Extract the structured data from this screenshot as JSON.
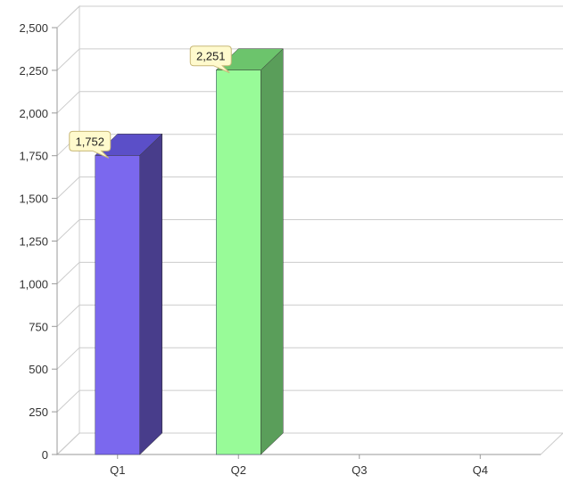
{
  "chart_data": {
    "type": "bar",
    "style": "3d",
    "title": "",
    "xlabel": "",
    "ylabel": "",
    "categories": [
      "Q1",
      "Q2",
      "Q3",
      "Q4"
    ],
    "values": [
      1752,
      2251,
      null,
      null
    ],
    "data_labels": [
      "1,752",
      "2,251",
      "",
      ""
    ],
    "ylim": [
      0,
      2500
    ],
    "yticks": [
      0,
      250,
      500,
      750,
      1000,
      1250,
      1500,
      1750,
      2000,
      2250,
      2500
    ],
    "ytick_labels": [
      "0",
      "250",
      "500",
      "750",
      "1,000",
      "1,250",
      "1,500",
      "1,750",
      "2,000",
      "2,250",
      "2,500"
    ],
    "grid": true,
    "legend": "none",
    "colors": {
      "Q1": {
        "front": "#7b68ee",
        "side": "#483d8b",
        "top": "#5b4fc8"
      },
      "Q2": {
        "front": "#98fb98",
        "side": "#5a9e5a",
        "top": "#6cc46c"
      },
      "grid": "#cccccc",
      "label_bg": "#fffacd",
      "label_border": "#c8b878"
    }
  }
}
